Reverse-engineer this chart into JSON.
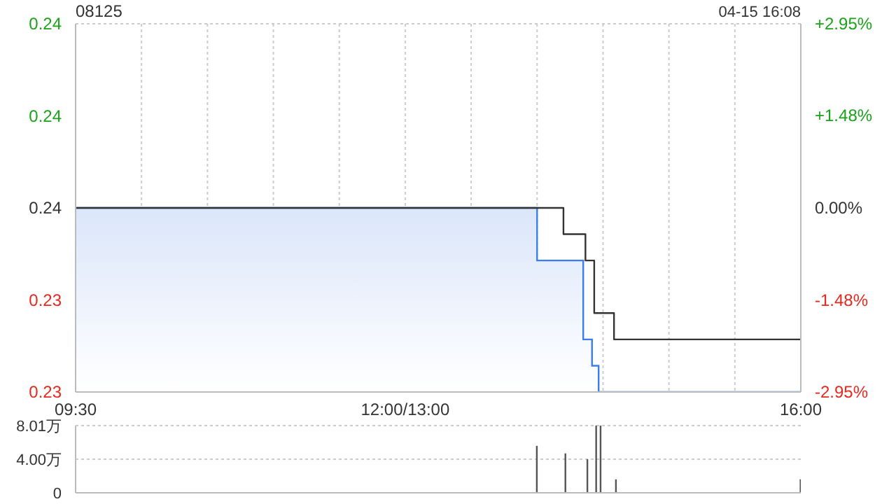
{
  "chart_data": [
    {
      "type": "step",
      "title": "08125",
      "annotations": [
        "04-15 16:08"
      ],
      "categories": [
        "09:30",
        null,
        null,
        null,
        null,
        null,
        null,
        null,
        null,
        null,
        null,
        null,
        null,
        null,
        null,
        null,
        null,
        null,
        null,
        null,
        null,
        null,
        null,
        null,
        null,
        null,
        null,
        null,
        null,
        null,
        null,
        null,
        null,
        null,
        null,
        null,
        null,
        null,
        null,
        null,
        null,
        null,
        null,
        null,
        null,
        null,
        null,
        null,
        null,
        null,
        null,
        null,
        null,
        null,
        null,
        null,
        null,
        null,
        null,
        null,
        null,
        null,
        null,
        null,
        null,
        null,
        null,
        null,
        null,
        null,
        null,
        null,
        null,
        null,
        null,
        null,
        null,
        null,
        null,
        null,
        null,
        null,
        null,
        null,
        null,
        null,
        null,
        null,
        null,
        null,
        null,
        null,
        null,
        null,
        null,
        null,
        null,
        null,
        null,
        null,
        null,
        null,
        null,
        null,
        null,
        null,
        null,
        null,
        null,
        null,
        null,
        null,
        null,
        null,
        null,
        null,
        null,
        null,
        null,
        null,
        null,
        null,
        null,
        null,
        null,
        null,
        null,
        null,
        null,
        null,
        null,
        null,
        null,
        null,
        null,
        null,
        null,
        null,
        null,
        null,
        null,
        null,
        null,
        null,
        null,
        null,
        null,
        null,
        null,
        null,
        "12:00/13:00",
        null,
        null,
        null,
        null,
        null,
        null,
        null,
        null,
        null,
        null,
        null,
        null,
        null,
        null,
        null,
        null,
        null,
        null,
        null,
        null,
        null,
        null,
        null,
        null,
        null,
        null,
        null,
        null,
        null,
        null,
        null,
        null,
        null,
        null,
        null,
        null,
        null,
        null,
        null,
        null,
        null,
        null,
        null,
        null,
        null,
        null,
        null,
        null,
        null,
        null,
        null,
        null,
        null,
        null,
        null,
        null,
        null,
        null,
        null,
        null,
        null,
        null,
        null,
        null,
        null,
        null,
        null,
        null,
        null,
        null,
        null,
        null,
        null,
        null,
        null,
        null,
        null,
        null,
        null,
        null,
        null,
        null,
        null,
        null,
        null,
        null,
        null,
        null,
        null,
        null,
        null,
        null,
        null,
        null,
        null,
        null,
        null,
        null,
        null,
        null,
        null,
        null,
        null,
        null,
        null,
        null,
        null,
        null,
        null,
        null,
        null,
        null,
        null,
        null,
        null,
        null,
        null,
        null,
        null,
        null,
        null,
        null,
        null,
        null,
        null,
        null,
        null,
        null,
        null,
        null,
        null,
        null,
        null,
        null,
        null,
        null,
        null,
        null,
        null,
        null,
        null,
        null,
        null,
        null,
        null,
        null,
        null,
        null,
        null,
        null,
        null,
        null,
        null,
        null,
        null,
        null,
        null,
        null,
        null,
        null,
        null,
        null,
        null,
        null,
        null,
        null,
        null,
        null,
        null,
        null,
        null,
        null,
        null,
        null,
        null,
        null,
        null,
        null,
        null,
        "16:00"
      ],
      "ylim": [
        0.23,
        0.244
      ],
      "yticks": [
        {
          "value": 0.23,
          "label": "0.23"
        },
        {
          "value": 0.2335,
          "label": "0.23"
        },
        {
          "value": 0.237,
          "label": "0.24"
        },
        {
          "value": 0.2405,
          "label": "0.24"
        },
        {
          "value": 0.244,
          "label": "0.24"
        }
      ],
      "y2lim": [
        -2.95,
        2.95
      ],
      "y2ticks": [
        {
          "value": -2.95,
          "label": "-2.95%"
        },
        {
          "value": -1.48,
          "label": "-1.48%"
        },
        {
          "value": 0,
          "label": "0.00%"
        },
        {
          "value": 1.48,
          "label": "+1.48%"
        },
        {
          "value": 2.95,
          "label": "+2.95%"
        }
      ],
      "grid": true,
      "series": [
        {
          "type": "area",
          "color": "#3b7ded",
          "values": [
            0.237,
            0.237,
            0.237,
            0.237,
            0.237,
            0.237,
            0.237,
            0.237,
            0.237,
            0.237,
            0.237,
            0.237,
            0.237,
            0.237,
            0.237,
            0.237,
            0.237,
            0.237,
            0.237,
            0.237,
            0.237,
            0.237,
            0.237,
            0.237,
            0.237,
            0.237,
            0.237,
            0.237,
            0.237,
            0.237,
            0.237,
            0.237,
            0.237,
            0.237,
            0.237,
            0.237,
            0.237,
            0.237,
            0.237,
            0.237,
            0.237,
            0.237,
            0.237,
            0.237,
            0.237,
            0.237,
            0.237,
            0.237,
            0.237,
            0.237,
            0.237,
            0.237,
            0.237,
            0.237,
            0.237,
            0.237,
            0.237,
            0.237,
            0.237,
            0.237,
            0.237,
            0.237,
            0.237,
            0.237,
            0.237,
            0.237,
            0.237,
            0.237,
            0.237,
            0.237,
            0.237,
            0.237,
            0.237,
            0.237,
            0.237,
            0.237,
            0.237,
            0.237,
            0.237,
            0.237,
            0.237,
            0.237,
            0.237,
            0.237,
            0.237,
            0.237,
            0.237,
            0.237,
            0.237,
            0.237,
            0.237,
            0.237,
            0.237,
            0.237,
            0.237,
            0.237,
            0.237,
            0.237,
            0.237,
            0.237,
            0.237,
            0.237,
            0.237,
            0.237,
            0.237,
            0.237,
            0.237,
            0.237,
            0.237,
            0.237,
            0.237,
            0.237,
            0.237,
            0.237,
            0.237,
            0.237,
            0.237,
            0.237,
            0.237,
            0.237,
            0.237,
            0.237,
            0.237,
            0.237,
            0.237,
            0.237,
            0.237,
            0.237,
            0.237,
            0.237,
            0.237,
            0.237,
            0.237,
            0.237,
            0.237,
            0.237,
            0.237,
            0.237,
            0.237,
            0.237,
            0.237,
            0.237,
            0.237,
            0.237,
            0.237,
            0.237,
            0.237,
            0.237,
            0.237,
            0.237,
            0.237,
            0.237,
            0.237,
            0.237,
            0.237,
            0.237,
            0.237,
            0.237,
            0.237,
            0.237,
            0.237,
            0.237,
            0.237,
            0.237,
            0.237,
            0.237,
            0.237,
            0.237,
            0.237,
            0.237,
            0.237,
            0.237,
            0.237,
            0.237,
            0.237,
            0.237,
            0.237,
            0.237,
            0.237,
            0.237,
            0.237,
            0.237,
            0.237,
            0.237,
            0.237,
            0.237,
            0.237,
            0.237,
            0.237,
            0.237,
            0.237,
            0.237,
            0.237,
            0.237,
            0.237,
            0.237,
            0.237,
            0.237,
            0.237,
            0.237,
            0.237,
            0.237,
            0.237,
            0.237,
            0.237,
            0.237,
            0.237,
            0.237,
            0.237,
            0.237,
            0.235,
            0.235,
            0.235,
            0.235,
            0.235,
            0.235,
            0.235,
            0.235,
            0.235,
            0.235,
            0.235,
            0.235,
            0.235,
            0.235,
            0.235,
            0.235,
            0.235,
            0.235,
            0.235,
            0.235,
            0.235,
            0.232,
            0.232,
            0.232,
            0.232,
            0.231,
            0.231,
            0.231,
            0.23,
            0.23,
            0.23,
            0.23,
            0.23,
            0.23,
            0.23,
            0.23,
            0.23,
            0.23,
            0.23,
            0.23,
            0.23,
            0.23,
            0.23,
            0.23,
            0.23,
            0.23,
            0.23,
            0.23,
            0.23,
            0.23,
            0.23,
            0.23,
            0.23,
            0.23,
            0.23,
            0.23,
            0.23,
            0.23,
            0.23,
            0.23,
            0.23,
            0.23,
            0.23,
            0.23,
            0.23,
            0.23,
            0.23,
            0.23,
            0.23,
            0.23,
            0.23,
            0.23,
            0.23,
            0.23,
            0.23,
            0.23,
            0.23,
            0.23,
            0.23,
            0.23,
            0.23,
            0.23,
            0.23,
            0.23,
            0.23,
            0.23,
            0.23,
            0.23,
            0.23,
            0.23,
            0.23,
            0.23,
            0.23,
            0.23,
            0.23,
            0.23,
            0.23,
            0.23,
            0.23,
            0.23,
            0.23,
            0.23,
            0.23,
            0.23,
            0.23,
            0.23,
            0.23,
            0.23,
            0.23,
            0.23,
            0.23,
            0.23,
            0.23,
            0.23,
            0.23,
            0.23,
            0.23,
            0.23,
            0.23,
            0.23,
            0.23
          ]
        },
        {
          "type": "step",
          "color": "#333333",
          "values": [
            0.237,
            0.237,
            0.237,
            0.237,
            0.237,
            0.237,
            0.237,
            0.237,
            0.237,
            0.237,
            0.237,
            0.237,
            0.237,
            0.237,
            0.237,
            0.237,
            0.237,
            0.237,
            0.237,
            0.237,
            0.237,
            0.237,
            0.237,
            0.237,
            0.237,
            0.237,
            0.237,
            0.237,
            0.237,
            0.237,
            0.237,
            0.237,
            0.237,
            0.237,
            0.237,
            0.237,
            0.237,
            0.237,
            0.237,
            0.237,
            0.237,
            0.237,
            0.237,
            0.237,
            0.237,
            0.237,
            0.237,
            0.237,
            0.237,
            0.237,
            0.237,
            0.237,
            0.237,
            0.237,
            0.237,
            0.237,
            0.237,
            0.237,
            0.237,
            0.237,
            0.237,
            0.237,
            0.237,
            0.237,
            0.237,
            0.237,
            0.237,
            0.237,
            0.237,
            0.237,
            0.237,
            0.237,
            0.237,
            0.237,
            0.237,
            0.237,
            0.237,
            0.237,
            0.237,
            0.237,
            0.237,
            0.237,
            0.237,
            0.237,
            0.237,
            0.237,
            0.237,
            0.237,
            0.237,
            0.237,
            0.237,
            0.237,
            0.237,
            0.237,
            0.237,
            0.237,
            0.237,
            0.237,
            0.237,
            0.237,
            0.237,
            0.237,
            0.237,
            0.237,
            0.237,
            0.237,
            0.237,
            0.237,
            0.237,
            0.237,
            0.237,
            0.237,
            0.237,
            0.237,
            0.237,
            0.237,
            0.237,
            0.237,
            0.237,
            0.237,
            0.237,
            0.237,
            0.237,
            0.237,
            0.237,
            0.237,
            0.237,
            0.237,
            0.237,
            0.237,
            0.237,
            0.237,
            0.237,
            0.237,
            0.237,
            0.237,
            0.237,
            0.237,
            0.237,
            0.237,
            0.237,
            0.237,
            0.237,
            0.237,
            0.237,
            0.237,
            0.237,
            0.237,
            0.237,
            0.237,
            0.237,
            0.237,
            0.237,
            0.237,
            0.237,
            0.237,
            0.237,
            0.237,
            0.237,
            0.237,
            0.237,
            0.237,
            0.237,
            0.237,
            0.237,
            0.237,
            0.237,
            0.237,
            0.237,
            0.237,
            0.237,
            0.237,
            0.237,
            0.237,
            0.237,
            0.237,
            0.237,
            0.237,
            0.237,
            0.237,
            0.237,
            0.237,
            0.237,
            0.237,
            0.237,
            0.237,
            0.237,
            0.237,
            0.237,
            0.237,
            0.237,
            0.237,
            0.237,
            0.237,
            0.237,
            0.237,
            0.237,
            0.237,
            0.237,
            0.237,
            0.237,
            0.237,
            0.237,
            0.237,
            0.237,
            0.237,
            0.237,
            0.237,
            0.237,
            0.237,
            0.237,
            0.237,
            0.237,
            0.237,
            0.237,
            0.237,
            0.237,
            0.237,
            0.237,
            0.237,
            0.237,
            0.237,
            0.236,
            0.236,
            0.236,
            0.236,
            0.236,
            0.236,
            0.236,
            0.236,
            0.236,
            0.236,
            0.235,
            0.235,
            0.235,
            0.235,
            0.233,
            0.233,
            0.233,
            0.233,
            0.233,
            0.233,
            0.233,
            0.233,
            0.233,
            0.232,
            0.232,
            0.232,
            0.232,
            0.232,
            0.232,
            0.232,
            0.232,
            0.232,
            0.232,
            0.232,
            0.232,
            0.232,
            0.232,
            0.232,
            0.232,
            0.232,
            0.232,
            0.232,
            0.232,
            0.232,
            0.232,
            0.232,
            0.232,
            0.232,
            0.232,
            0.232,
            0.232,
            0.232,
            0.232,
            0.232,
            0.232,
            0.232,
            0.232,
            0.232,
            0.232,
            0.232,
            0.232,
            0.232,
            0.232,
            0.232,
            0.232,
            0.232,
            0.232,
            0.232,
            0.232,
            0.232,
            0.232,
            0.232,
            0.232,
            0.232,
            0.232,
            0.232,
            0.232,
            0.232,
            0.232,
            0.232,
            0.232,
            0.232,
            0.232,
            0.232,
            0.232,
            0.232,
            0.232,
            0.232,
            0.232,
            0.232,
            0.232,
            0.232,
            0.232,
            0.232,
            0.232,
            0.232,
            0.232,
            0.232,
            0.232,
            0.232,
            0.232,
            0.232,
            0.232,
            0.232,
            0.232,
            0.232,
            0.232,
            0.232,
            0.232
          ]
        }
      ]
    },
    {
      "type": "bar",
      "categories": [
        null,
        null,
        null,
        null,
        null,
        null,
        null,
        null,
        null,
        null,
        null,
        null,
        null,
        null,
        null,
        null,
        null,
        null,
        null,
        null,
        null,
        null,
        null,
        null,
        null,
        null,
        null,
        null,
        null,
        null,
        null,
        null,
        null,
        null,
        null,
        null,
        null,
        null,
        null,
        null,
        null,
        null,
        null,
        null,
        null,
        null,
        null,
        null,
        null,
        null,
        null,
        null,
        null,
        null,
        null,
        null,
        null,
        null,
        null,
        null,
        null,
        null,
        null,
        null,
        null,
        null,
        null,
        null,
        null,
        null,
        null,
        null,
        null,
        null,
        null,
        null,
        null,
        null,
        null,
        null,
        null,
        null,
        null,
        null,
        null,
        null,
        null,
        null,
        null,
        null,
        null,
        null,
        null,
        null,
        null,
        null,
        null,
        null,
        null,
        null,
        null,
        null,
        null,
        null,
        null,
        null,
        null,
        null,
        null,
        null,
        null,
        null,
        null,
        null,
        null,
        null,
        null,
        null,
        null,
        null,
        null,
        null,
        null,
        null,
        null,
        null,
        null,
        null,
        null,
        null,
        null,
        null,
        null,
        null,
        null,
        null,
        null,
        null,
        null,
        null,
        null,
        null,
        null,
        null,
        null,
        null,
        null,
        null,
        null,
        null,
        null,
        null,
        null,
        null,
        null,
        null,
        null,
        null,
        null,
        null,
        null,
        null,
        null,
        null,
        null,
        null,
        null,
        null,
        null,
        null,
        null,
        null,
        null,
        null,
        null,
        null,
        null,
        null,
        null,
        null,
        null,
        null,
        null,
        null,
        null,
        null,
        null,
        null,
        null,
        null,
        null,
        null,
        null,
        null,
        null,
        null,
        null,
        null,
        null,
        null,
        null,
        null,
        null,
        null,
        null,
        null,
        null,
        null,
        null,
        null,
        null,
        null,
        null,
        null,
        null,
        null,
        null,
        null,
        null,
        null,
        null,
        null,
        null,
        null,
        null,
        null,
        null,
        null,
        null,
        null,
        null,
        null,
        null,
        null,
        null,
        null,
        null,
        null,
        null,
        null,
        null,
        null,
        null,
        null,
        null,
        null,
        null,
        null,
        null,
        null,
        null,
        null,
        null,
        null,
        null,
        null,
        null,
        null,
        null,
        null,
        null,
        null,
        null,
        null,
        null,
        null,
        null,
        null,
        null,
        null,
        null,
        null,
        null,
        null,
        null,
        null,
        null,
        null,
        null,
        null,
        null,
        null,
        null,
        null,
        null,
        null,
        null,
        null,
        null,
        null,
        null,
        null,
        null,
        null,
        null,
        null,
        null,
        null,
        null,
        null,
        null,
        null,
        null,
        null,
        null,
        null,
        null,
        null,
        null,
        null,
        null,
        null,
        null,
        null,
        null,
        null,
        null,
        null,
        null,
        null,
        null,
        null,
        null,
        null,
        null,
        null,
        null,
        null,
        null,
        null,
        null
      ],
      "values": [
        null,
        null,
        null,
        null,
        null,
        null,
        null,
        null,
        null,
        null,
        null,
        null,
        null,
        null,
        null,
        null,
        null,
        null,
        null,
        null,
        null,
        null,
        null,
        null,
        null,
        null,
        null,
        null,
        null,
        null,
        null,
        null,
        null,
        null,
        null,
        null,
        null,
        null,
        null,
        null,
        null,
        null,
        null,
        null,
        null,
        null,
        null,
        null,
        null,
        null,
        null,
        null,
        null,
        null,
        null,
        null,
        null,
        null,
        null,
        null,
        null,
        null,
        null,
        null,
        null,
        null,
        null,
        null,
        null,
        null,
        null,
        null,
        null,
        null,
        null,
        null,
        null,
        null,
        null,
        null,
        null,
        null,
        null,
        null,
        null,
        null,
        null,
        null,
        null,
        null,
        null,
        null,
        null,
        null,
        null,
        null,
        null,
        null,
        null,
        null,
        null,
        null,
        null,
        null,
        null,
        null,
        null,
        null,
        null,
        null,
        null,
        null,
        null,
        null,
        null,
        null,
        null,
        null,
        null,
        null,
        null,
        null,
        null,
        null,
        null,
        null,
        null,
        null,
        null,
        null,
        null,
        null,
        null,
        null,
        null,
        null,
        null,
        null,
        null,
        null,
        null,
        null,
        null,
        null,
        null,
        null,
        null,
        null,
        null,
        null,
        null,
        null,
        null,
        null,
        null,
        null,
        null,
        null,
        null,
        null,
        null,
        null,
        null,
        null,
        null,
        null,
        null,
        null,
        null,
        null,
        null,
        null,
        null,
        null,
        null,
        null,
        null,
        null,
        null,
        null,
        null,
        null,
        null,
        null,
        null,
        null,
        null,
        null,
        null,
        null,
        null,
        null,
        null,
        null,
        null,
        null,
        null,
        null,
        null,
        null,
        null,
        null,
        null,
        null,
        null,
        null,
        null,
        null,
        null,
        null,
        5.6,
        null,
        null,
        null,
        null,
        null,
        null,
        null,
        null,
        null,
        null,
        null,
        null,
        4.7,
        null,
        null,
        null,
        null,
        null,
        null,
        null,
        null,
        null,
        4.0,
        null,
        null,
        null,
        8.01,
        null,
        8.01,
        null,
        null,
        null,
        null,
        null,
        null,
        1.6,
        null,
        null,
        null,
        null,
        null,
        null,
        null,
        null,
        null,
        null,
        null,
        null,
        null,
        null,
        null,
        null,
        null,
        null,
        null,
        null,
        null,
        null,
        null,
        null,
        null,
        null,
        null,
        null,
        null,
        null,
        null,
        null,
        null,
        null,
        null,
        null,
        null,
        null,
        null,
        null,
        null,
        null,
        null,
        null,
        null,
        null,
        null,
        null,
        null,
        null,
        null,
        null,
        null,
        null,
        null,
        null,
        null,
        null,
        null,
        null,
        null,
        null,
        null,
        null,
        null,
        null,
        null,
        null,
        null,
        null,
        null,
        null,
        null,
        null,
        null,
        null,
        null,
        null,
        null,
        null,
        null,
        null,
        null,
        1.6
      ],
      "color": "#555555",
      "ylim": [
        0,
        8.01
      ],
      "yticks": [
        0,
        {
          "value": 4,
          "label": "4.00万"
        },
        {
          "value": 8.01,
          "label": "8.01万"
        }
      ],
      "grid": "y",
      "tick_labels": "y"
    }
  ]
}
